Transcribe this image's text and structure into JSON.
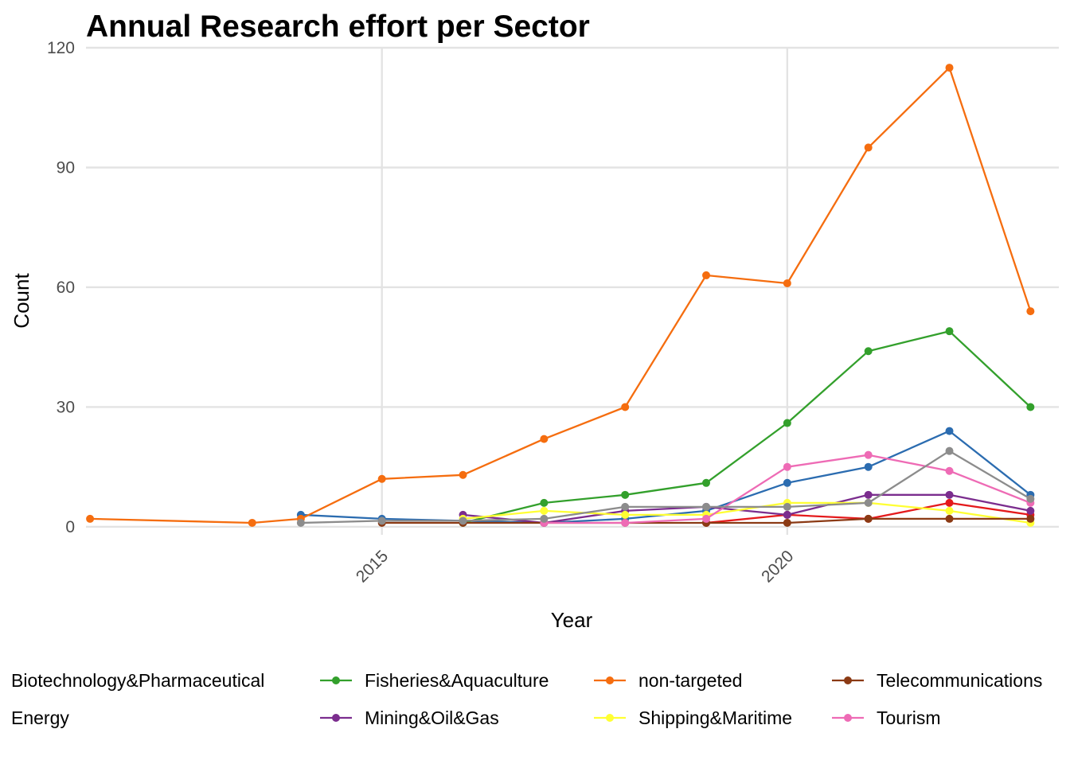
{
  "chart_data": {
    "type": "line",
    "title": "Annual Research effort per Sector",
    "xlabel": "Year",
    "ylabel": "Count",
    "xlim": [
      2011.35,
      2023.35
    ],
    "ylim": [
      -2,
      120
    ],
    "x_ticks": [
      2015,
      2020
    ],
    "x_tick_labels": [
      "2015",
      "2020"
    ],
    "y_ticks": [
      0,
      30,
      60,
      90,
      120
    ],
    "y_tick_labels": [
      "0",
      "30",
      "60",
      "90",
      "120"
    ],
    "grid": true,
    "legend_position": "bottom",
    "series": [
      {
        "name": "Biotechnology&Pharmaceutical",
        "color": "#e41a1c",
        "x": [
          2019,
          2020,
          2021,
          2022,
          2023
        ],
        "y": [
          1,
          3,
          2,
          6,
          3
        ]
      },
      {
        "name": "Energy",
        "color": "#2b6cb0",
        "x": [
          2014,
          2015,
          2016,
          2017,
          2018,
          2019,
          2020,
          2021,
          2022,
          2023
        ],
        "y": [
          3,
          2,
          1.5,
          1,
          2,
          4,
          11,
          15,
          24,
          8
        ]
      },
      {
        "name": "Fisheries&Aquaculture",
        "color": "#33a02c",
        "x": [
          2016,
          2017,
          2018,
          2019,
          2020,
          2021,
          2022,
          2023
        ],
        "y": [
          1,
          6,
          8,
          11,
          26,
          44,
          49,
          30
        ]
      },
      {
        "name": "Mining&Oil&Gas",
        "color": "#7b2d8e",
        "x": [
          2016,
          2017,
          2018,
          2019,
          2020,
          2021,
          2022,
          2023
        ],
        "y": [
          3,
          1,
          4,
          5,
          3,
          8,
          8,
          4
        ]
      },
      {
        "name": "non-targeted",
        "color": "#f56d0f",
        "x": [
          2011.4,
          2013.4,
          2014,
          2015,
          2016,
          2017,
          2018,
          2019,
          2020,
          2021,
          2022,
          2023
        ],
        "y": [
          2,
          1,
          2,
          12,
          13,
          22,
          30,
          63,
          61,
          95,
          115,
          54
        ]
      },
      {
        "name": "Shipping&Maritime",
        "color": "#ffff33",
        "x": [
          2016,
          2017,
          2018,
          2019,
          2020,
          2021,
          2022,
          2023
        ],
        "y": [
          2,
          4,
          3,
          3,
          6,
          6,
          4,
          1
        ]
      },
      {
        "name": "Telecommunications",
        "color": "#8b3a14",
        "x": [
          2015,
          2016,
          2017,
          2018,
          2019,
          2020,
          2021,
          2022,
          2023
        ],
        "y": [
          1,
          1,
          1,
          1,
          1,
          1,
          2,
          2,
          2
        ]
      },
      {
        "name": "Tourism",
        "color": "#ee6bb5",
        "x": [
          2017,
          2018,
          2019,
          2020,
          2021,
          2022,
          2023
        ],
        "y": [
          1,
          1,
          2,
          15,
          18,
          14,
          6
        ]
      },
      {
        "name": "",
        "color": "#8c8c8c",
        "x": [
          2014,
          2015,
          2016,
          2017,
          2018,
          2019,
          2020,
          2021,
          2022,
          2023
        ],
        "y": [
          1,
          1.5,
          1.5,
          2,
          5,
          5,
          5,
          6,
          19,
          7
        ]
      }
    ],
    "legend": {
      "rows": [
        [
          {
            "label": "Biotechnology&Pharmaceutical",
            "marker": false
          },
          {
            "label": "Fisheries&Aquaculture",
            "marker": true,
            "color": "#33a02c"
          },
          {
            "label": "non-targeted",
            "marker": true,
            "color": "#f56d0f"
          },
          {
            "label": "Telecommunications",
            "marker": true,
            "color": "#8b3a14"
          }
        ],
        [
          {
            "label": "Energy",
            "marker": false
          },
          {
            "label": "Mining&Oil&Gas",
            "marker": true,
            "color": "#7b2d8e"
          },
          {
            "label": "Shipping&Maritime",
            "marker": true,
            "color": "#ffff33"
          },
          {
            "label": "Tourism",
            "marker": true,
            "color": "#ee6bb5"
          }
        ]
      ]
    }
  }
}
